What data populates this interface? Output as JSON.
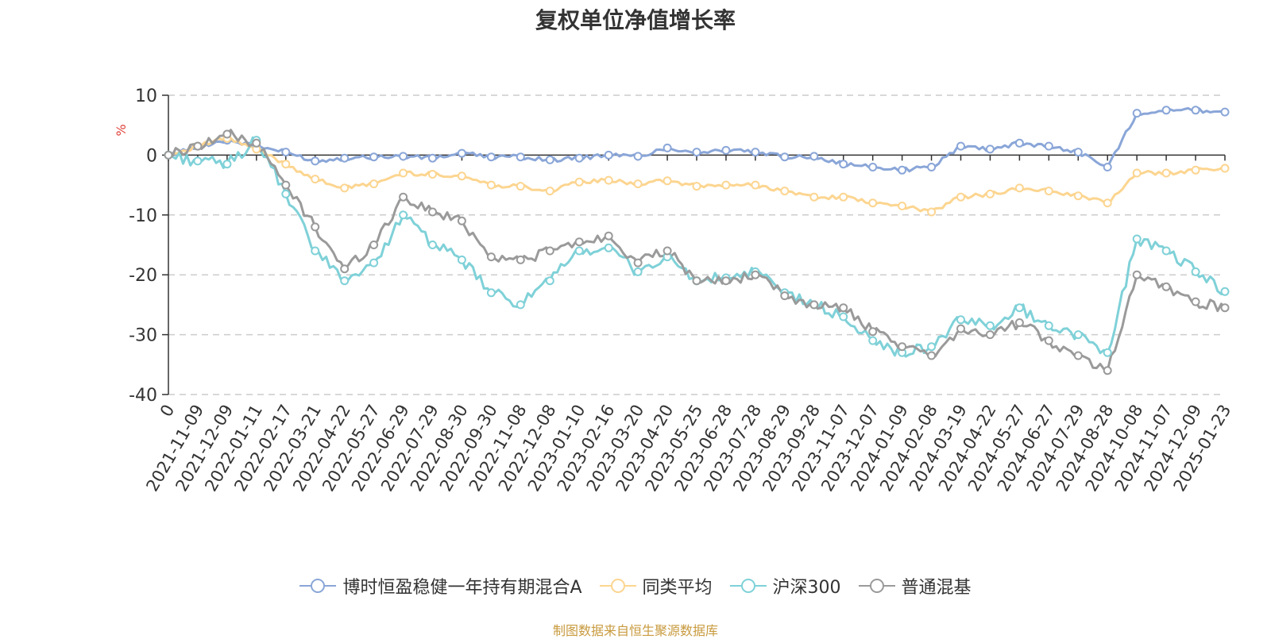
{
  "chart_data": {
    "type": "line",
    "title": "复权单位净值增长率",
    "ylabel": "%",
    "xlabel": "",
    "ylim": [
      -40,
      10
    ],
    "yticks": [
      10,
      0,
      -10,
      -20,
      -30,
      -40
    ],
    "grid": true,
    "legend_position": "bottom-center",
    "categories": [
      "0",
      "2021-11-09",
      "2021-12-09",
      "2022-01-11",
      "2022-02-17",
      "2022-03-21",
      "2022-04-22",
      "2022-05-27",
      "2022-06-29",
      "2022-07-29",
      "2022-08-30",
      "2022-09-30",
      "2022-11-08",
      "2022-12-08",
      "2023-01-10",
      "2023-02-16",
      "2023-03-20",
      "2023-04-20",
      "2023-05-25",
      "2023-06-28",
      "2023-07-28",
      "2023-08-29",
      "2023-09-28",
      "2023-11-07",
      "2023-12-07",
      "2024-01-09",
      "2024-02-08",
      "2024-03-19",
      "2024-04-22",
      "2024-05-27",
      "2024-06-27",
      "2024-07-29",
      "2024-08-28",
      "2024-10-08",
      "2024-11-07",
      "2024-12-09",
      "2025-01-23"
    ],
    "series": [
      {
        "name": "博时恒盈稳健一年持有期混合A",
        "color": "#8aa6d8",
        "values": [
          0,
          1.5,
          2.5,
          1.5,
          0.5,
          -1.0,
          -0.5,
          -0.3,
          -0.2,
          -0.5,
          0.3,
          -0.3,
          -0.3,
          -0.8,
          -0.5,
          0,
          -0.2,
          1.2,
          0.5,
          0.8,
          0.5,
          -0.3,
          -0.2,
          -1.5,
          -2.0,
          -2.5,
          -2.0,
          1.5,
          1.0,
          2.0,
          1.5,
          0.5,
          -2.0,
          7.0,
          7.5,
          7.5,
          7.2
        ]
      },
      {
        "name": "同类平均",
        "color": "#fcd590",
        "values": [
          0,
          1.5,
          2.8,
          1.0,
          -1.5,
          -4.0,
          -5.5,
          -4.8,
          -3.0,
          -3.2,
          -3.5,
          -5.0,
          -5.2,
          -6.0,
          -4.5,
          -4.2,
          -4.8,
          -4.3,
          -5.2,
          -5.0,
          -5.0,
          -6.0,
          -7.0,
          -7.0,
          -8.0,
          -8.5,
          -9.5,
          -7.0,
          -6.5,
          -5.5,
          -6.0,
          -6.8,
          -8.0,
          -3.0,
          -3.0,
          -2.5,
          -2.2
        ]
      },
      {
        "name": "沪深300",
        "color": "#7fd1d8",
        "values": [
          0,
          -1.0,
          -1.5,
          2.5,
          -6.5,
          -16.0,
          -21.0,
          -18.0,
          -10.0,
          -15.0,
          -17.5,
          -23.0,
          -25.0,
          -21.0,
          -16.0,
          -15.5,
          -19.5,
          -17.0,
          -21.0,
          -20.5,
          -19.5,
          -23.0,
          -25.0,
          -27.0,
          -31.0,
          -33.0,
          -32.0,
          -27.5,
          -28.5,
          -25.5,
          -28.5,
          -30.0,
          -33.0,
          -14.0,
          -16.0,
          -19.5,
          -22.8
        ]
      },
      {
        "name": "普通混基",
        "color": "#9a9a9a",
        "values": [
          0,
          1.5,
          3.5,
          2.0,
          -5.0,
          -12.0,
          -19.0,
          -15.0,
          -7.0,
          -9.5,
          -11.0,
          -17.0,
          -17.5,
          -16.0,
          -14.5,
          -13.5,
          -18.0,
          -16.0,
          -21.0,
          -21.0,
          -20.0,
          -23.5,
          -25.0,
          -25.5,
          -29.5,
          -32.0,
          -33.5,
          -29.0,
          -30.0,
          -28.0,
          -31.0,
          -33.5,
          -36.0,
          -20.0,
          -22.0,
          -24.5,
          -25.5
        ]
      }
    ]
  },
  "source_text": "制图数据来自恒生聚源数据库"
}
